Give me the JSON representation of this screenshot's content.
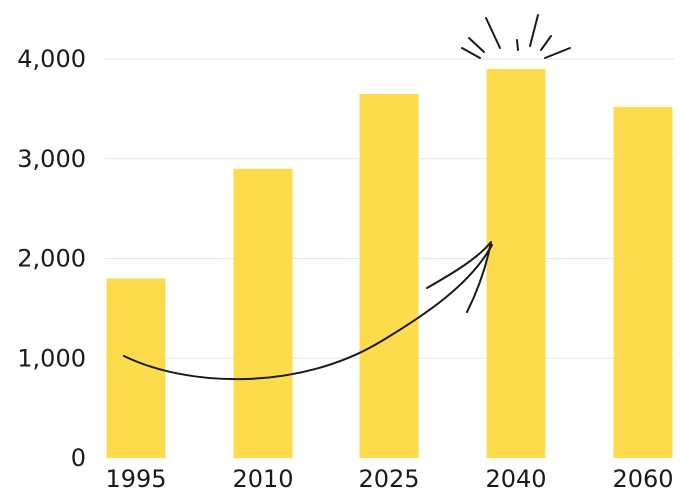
{
  "chart_data": {
    "type": "bar",
    "categories": [
      "1995",
      "2010",
      "2025",
      "2040",
      "2060"
    ],
    "values": [
      1800,
      2900,
      3650,
      3900,
      3520
    ],
    "ylim": [
      0,
      4000
    ],
    "yticks": [
      0,
      1000,
      2000,
      3000,
      4000
    ],
    "ytick_labels": [
      "0",
      "1,000",
      "2,000",
      "3,000",
      "4,000"
    ],
    "grid": true,
    "colors": {
      "bar": "#fcdc4d",
      "grid": "#e6e6e6",
      "text": "#1a1a1a",
      "annotation": "#1a1a1a"
    },
    "annotations": [
      {
        "kind": "arrow",
        "from_category": "1995",
        "to_category": "2040"
      },
      {
        "kind": "highlight-burst",
        "category": "2040"
      }
    ]
  }
}
